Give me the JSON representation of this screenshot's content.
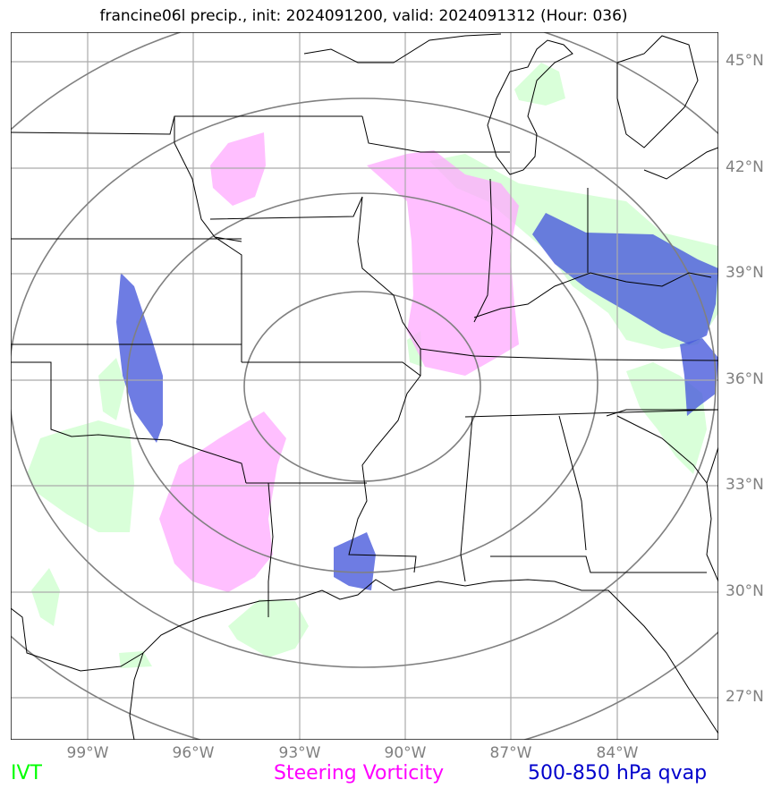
{
  "title": "francine06l precip., init: 2024091200, valid: 2024091312 (Hour: 036)",
  "lat_labels": [
    "45°N",
    "42°N",
    "39°N",
    "36°N",
    "33°N",
    "30°N",
    "27°N"
  ],
  "lon_labels": [
    "99°W",
    "96°W",
    "93°W",
    "90°W",
    "87°W",
    "84°W"
  ],
  "legend": {
    "ivt": {
      "label": "IVT",
      "color": "#00ff00"
    },
    "vorticity": {
      "label": "Steering Vorticity",
      "color": "#ff00ff"
    },
    "qvap": {
      "label": "500-850 hPa qvap",
      "color": "#0000cc"
    }
  },
  "colors": {
    "ivt_fill": "#ccffcc",
    "vorticity_fill": "#ffaaff",
    "qvap_fill": "#4a5bdc",
    "gridlines": "#aaaaaa",
    "range_rings": "#808080",
    "coastlines_borders": "#000000"
  }
}
